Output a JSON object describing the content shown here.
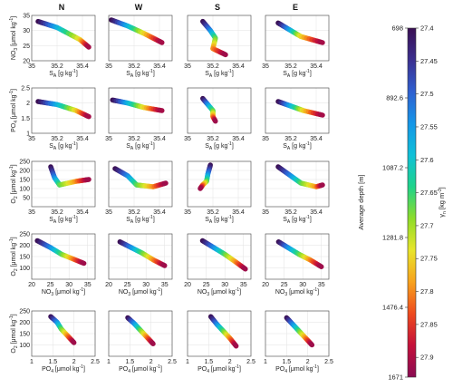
{
  "chart_data": {
    "type": "scatter",
    "columns": [
      "N",
      "W",
      "S",
      "E"
    ],
    "rows": [
      {
        "id": "r1",
        "xlabel": "S_A [g kg^-1]",
        "xlabel_main": "S",
        "xlabel_sub": "A",
        "xlabel_rest": " [g kg",
        "xlabel_sup": "-1",
        "xlabel_end": "]",
        "ylabel_main": "NO",
        "ylabel_sub": "3",
        "ylabel_rest": " [μmol kg",
        "ylabel_sup": "-1",
        "ylabel_end": "]",
        "xlim": [
          35,
          35.5
        ],
        "ylim": [
          20,
          35
        ],
        "xticks": [
          "35",
          "35.2",
          "35.4"
        ],
        "xtick_vals": [
          35,
          35.2,
          35.4
        ],
        "yticks": [
          "20",
          "25",
          "30",
          "35"
        ],
        "ytick_vals": [
          20,
          25,
          30,
          35
        ],
        "clouds": [
          [
            [
              35.05,
              33
            ],
            [
              35.2,
              31
            ],
            [
              35.38,
              27
            ],
            [
              35.45,
              24.5
            ]
          ],
          [
            [
              35.02,
              33.5
            ],
            [
              35.15,
              31.5
            ],
            [
              35.28,
              29
            ],
            [
              35.42,
              26
            ]
          ],
          [
            [
              35.12,
              33
            ],
            [
              35.18,
              30
            ],
            [
              35.22,
              27.5
            ],
            [
              35.2,
              24
            ],
            [
              35.3,
              22
            ]
          ],
          [
            [
              35.1,
              32.5
            ],
            [
              35.2,
              30
            ],
            [
              35.28,
              28
            ],
            [
              35.45,
              26
            ]
          ]
        ]
      },
      {
        "id": "r2",
        "xlabel_main": "S",
        "xlabel_sub": "A",
        "xlabel_rest": " [g kg",
        "xlabel_sup": "-1",
        "xlabel_end": "]",
        "ylabel_main": "PO",
        "ylabel_sub": "4",
        "ylabel_rest": " [μmol kg",
        "ylabel_sup": "-1",
        "ylabel_end": "]",
        "xlim": [
          35,
          35.5
        ],
        "ylim": [
          1,
          2.5
        ],
        "xticks": [
          "35",
          "35.2",
          "35.4"
        ],
        "xtick_vals": [
          35,
          35.2,
          35.4
        ],
        "yticks": [
          "1",
          "1.5",
          "2",
          "2.5"
        ],
        "ytick_vals": [
          1,
          1.5,
          2,
          2.5
        ],
        "clouds": [
          [
            [
              35.05,
              2.05
            ],
            [
              35.2,
              1.95
            ],
            [
              35.35,
              1.75
            ],
            [
              35.45,
              1.55
            ]
          ],
          [
            [
              35.03,
              2.1
            ],
            [
              35.15,
              2.0
            ],
            [
              35.28,
              1.85
            ],
            [
              35.42,
              1.75
            ]
          ],
          [
            [
              35.12,
              2.15
            ],
            [
              35.16,
              1.95
            ],
            [
              35.2,
              1.75
            ],
            [
              35.2,
              1.55
            ],
            [
              35.22,
              1.4
            ]
          ],
          [
            [
              35.1,
              2.05
            ],
            [
              35.2,
              1.9
            ],
            [
              35.3,
              1.75
            ],
            [
              35.45,
              1.6
            ]
          ]
        ]
      },
      {
        "id": "r3",
        "xlabel_main": "S",
        "xlabel_sub": "A",
        "xlabel_rest": " [g kg",
        "xlabel_sup": "-1",
        "xlabel_end": "]",
        "ylabel_main": "O",
        "ylabel_sub": "2",
        "ylabel_rest": " [μmol kg",
        "ylabel_sup": "-1",
        "ylabel_end": "]",
        "xlim": [
          35,
          35.5
        ],
        "ylim": [
          0,
          250
        ],
        "xticks": [
          "35",
          "35.2",
          "35.4"
        ],
        "xtick_vals": [
          35,
          35.2,
          35.4
        ],
        "yticks": [
          "50",
          "100",
          "150",
          "200",
          "250"
        ],
        "ytick_vals": [
          50,
          100,
          150,
          200,
          250
        ],
        "clouds": [
          [
            [
              35.15,
              220
            ],
            [
              35.18,
              160
            ],
            [
              35.22,
              120
            ],
            [
              35.35,
              140
            ],
            [
              35.45,
              150
            ]
          ],
          [
            [
              35.05,
              210
            ],
            [
              35.15,
              170
            ],
            [
              35.22,
              120
            ],
            [
              35.35,
              110
            ],
            [
              35.45,
              130
            ]
          ],
          [
            [
              35.18,
              230
            ],
            [
              35.16,
              180
            ],
            [
              35.15,
              140
            ],
            [
              35.12,
              120
            ],
            [
              35.1,
              100
            ]
          ],
          [
            [
              35.1,
              220
            ],
            [
              35.2,
              170
            ],
            [
              35.28,
              130
            ],
            [
              35.4,
              110
            ],
            [
              35.45,
              120
            ]
          ]
        ]
      },
      {
        "id": "r4",
        "xlabel_main": "NO",
        "xlabel_sub": "3",
        "xlabel_rest": " [μmol kg",
        "xlabel_sup": "-1",
        "xlabel_end": "]",
        "ylabel_main": "O",
        "ylabel_sub": "2",
        "ylabel_rest": " [μmol kg",
        "ylabel_sup": "-1",
        "ylabel_end": "]",
        "xlim": [
          20,
          37
        ],
        "ylim": [
          50,
          250
        ],
        "xticks": [
          "20",
          "25",
          "30",
          "35"
        ],
        "xtick_vals": [
          20,
          25,
          30,
          35
        ],
        "yticks": [
          "100",
          "150",
          "200",
          "250"
        ],
        "ytick_vals": [
          100,
          150,
          200,
          250
        ],
        "clouds": [
          [
            [
              21.5,
              220
            ],
            [
              25,
              190
            ],
            [
              28,
              160
            ],
            [
              31,
              140
            ],
            [
              34,
              120
            ]
          ],
          [
            [
              23,
              215
            ],
            [
              26,
              190
            ],
            [
              29,
              165
            ],
            [
              32,
              135
            ],
            [
              35,
              110
            ]
          ],
          [
            [
              24,
              220
            ],
            [
              27,
              190
            ],
            [
              30,
              160
            ],
            [
              33,
              125
            ],
            [
              35.5,
              95
            ]
          ],
          [
            [
              23.5,
              215
            ],
            [
              26,
              190
            ],
            [
              29,
              160
            ],
            [
              32,
              135
            ],
            [
              35,
              105
            ]
          ]
        ]
      },
      {
        "id": "r5",
        "xlabel_main": "PO",
        "xlabel_sub": "4",
        "xlabel_rest": " [μmol kg",
        "xlabel_sup": "-1",
        "xlabel_end": "]",
        "ylabel_main": "O",
        "ylabel_sub": "2",
        "ylabel_rest": " [μmol kg",
        "ylabel_sup": "-1",
        "ylabel_end": "]",
        "xlim": [
          1,
          2.5
        ],
        "ylim": [
          50,
          250
        ],
        "xticks": [
          "1",
          "1.5",
          "2",
          "2.5"
        ],
        "xtick_vals": [
          1,
          1.5,
          2,
          2.5
        ],
        "yticks": [
          "100",
          "150",
          "200",
          "250"
        ],
        "ytick_vals": [
          100,
          150,
          200,
          250
        ],
        "clouds": [
          [
            [
              1.45,
              225
            ],
            [
              1.6,
              200
            ],
            [
              1.7,
              170
            ],
            [
              1.85,
              140
            ],
            [
              2.0,
              110
            ]
          ],
          [
            [
              1.45,
              220
            ],
            [
              1.6,
              195
            ],
            [
              1.75,
              165
            ],
            [
              1.9,
              135
            ],
            [
              2.05,
              105
            ]
          ],
          [
            [
              1.55,
              225
            ],
            [
              1.7,
              190
            ],
            [
              1.85,
              160
            ],
            [
              2.0,
              130
            ],
            [
              2.15,
              95
            ]
          ],
          [
            [
              1.5,
              220
            ],
            [
              1.65,
              190
            ],
            [
              1.8,
              160
            ],
            [
              1.95,
              130
            ],
            [
              2.1,
              100
            ]
          ]
        ]
      }
    ],
    "colorbar": {
      "left_label": "Average depth [m]",
      "left_ticks": [
        "698",
        "892.6",
        "1087.2",
        "1281.8",
        "1476.4",
        "1671"
      ],
      "right_label_main": "γ",
      "right_label_sub": "n",
      "right_label_rest": " [kg m",
      "right_label_sup": "-3",
      "right_label_end": "]",
      "right_ticks": [
        "27.4",
        "27.45",
        "27.5",
        "27.55",
        "27.6",
        "27.65",
        "27.7",
        "27.75",
        "27.8",
        "27.85",
        "27.9"
      ],
      "range": [
        27.4,
        27.93
      ],
      "colors": [
        "#3a0f53",
        "#3b2f8f",
        "#2f5fd0",
        "#1596e8",
        "#10c0d8",
        "#1fd38a",
        "#8edc2a",
        "#e8e52b",
        "#f7a21d",
        "#ee4a1e",
        "#c4103a",
        "#8a0b52"
      ]
    }
  }
}
